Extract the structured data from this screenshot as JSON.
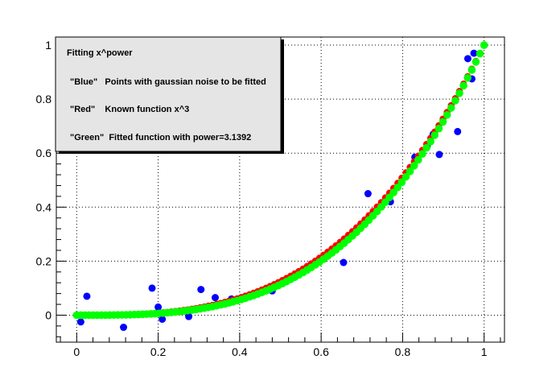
{
  "chart_data": {
    "type": "scatter",
    "xlim": [
      -0.05,
      1.05
    ],
    "ylim": [
      -0.1,
      1.03
    ],
    "x_ticks": [
      "0",
      "0.2",
      "0.4",
      "0.6",
      "0.8",
      "1"
    ],
    "x_tick_values": [
      0,
      0.2,
      0.4,
      0.6,
      0.8,
      1
    ],
    "y_ticks": [
      "0",
      "0.2",
      "0.4",
      "0.6",
      "0.8",
      "1"
    ],
    "y_tick_values": [
      0,
      0.2,
      0.4,
      0.6,
      0.8,
      1
    ],
    "grid": true,
    "legend_position": "top-left",
    "legend": {
      "title": "Fitting x^power",
      "entries": [
        "\"Blue\"   Points with gaussian noise to be fitted",
        "\"Red\"    Known function x^3",
        "\"Green\"  Fitted function with power=3.1392"
      ]
    },
    "colors": {
      "blue": "#0000ff",
      "red": "#ff0000",
      "green": "#00ff00",
      "legend_bg": "#e5e5e5"
    },
    "series": [
      {
        "color": "blue",
        "points": [
          [
            0.01,
            -0.025
          ],
          [
            0.025,
            0.07
          ],
          [
            0.115,
            -0.045
          ],
          [
            0.185,
            0.1
          ],
          [
            0.2,
            0.03
          ],
          [
            0.21,
            -0.015
          ],
          [
            0.275,
            -0.005
          ],
          [
            0.305,
            0.095
          ],
          [
            0.34,
            0.065
          ],
          [
            0.38,
            0.06
          ],
          [
            0.48,
            0.09
          ],
          [
            0.655,
            0.195
          ],
          [
            0.715,
            0.45
          ],
          [
            0.77,
            0.42
          ],
          [
            0.83,
            0.585
          ],
          [
            0.86,
            0.625
          ],
          [
            0.875,
            0.67
          ],
          [
            0.89,
            0.595
          ],
          [
            0.935,
            0.68
          ],
          [
            0.96,
            0.95
          ],
          [
            0.97,
            0.875
          ],
          [
            0.975,
            0.97
          ]
        ]
      },
      {
        "color": "red",
        "function": "x^3",
        "x_range": [
          0,
          1
        ],
        "n": 100
      },
      {
        "color": "green",
        "function": "x^3.1392",
        "x_range": [
          0,
          1
        ],
        "n": 100
      }
    ]
  }
}
